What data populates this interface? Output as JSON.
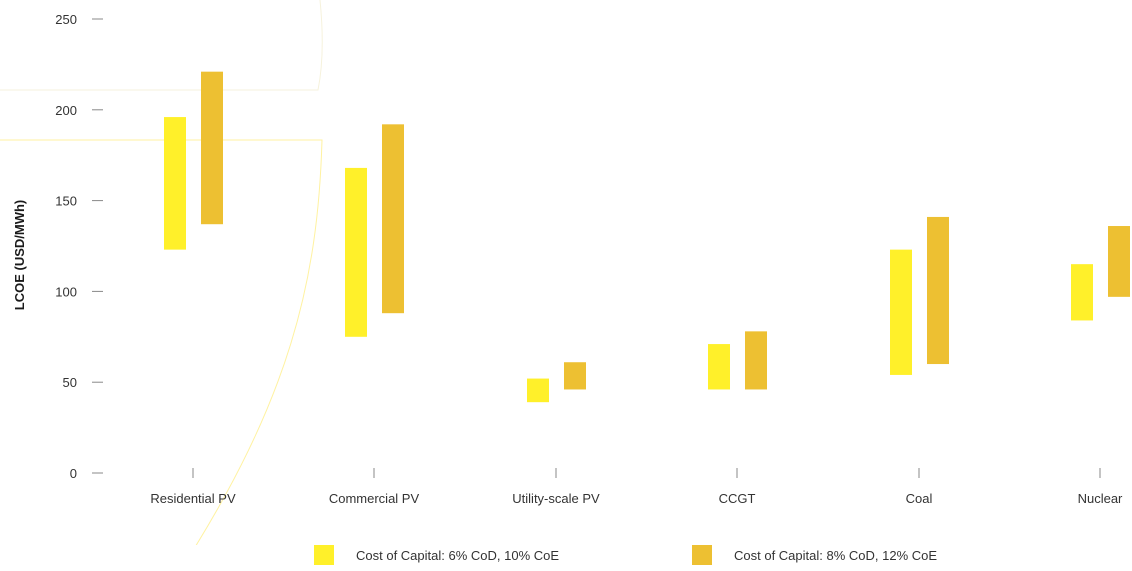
{
  "chart_data": {
    "type": "bar",
    "subtype": "floating-range",
    "ylabel": "LCOE (USD/MWh)",
    "ylim": [
      0,
      250
    ],
    "yticks": [
      0,
      50,
      100,
      150,
      200,
      250
    ],
    "grid": false,
    "legend_position": "bottom",
    "categories": [
      "Residential PV",
      "Commercial PV",
      "Utility-scale PV",
      "CCGT",
      "Coal",
      "Nuclear"
    ],
    "series": [
      {
        "name": "Cost of Capital: 6% CoD, 10% CoE",
        "color": "#FFF02A",
        "ranges": [
          [
            123,
            196
          ],
          [
            75,
            168
          ],
          [
            39,
            52
          ],
          [
            46,
            71
          ],
          [
            54,
            123
          ],
          [
            84,
            115
          ]
        ]
      },
      {
        "name": "Cost of Capital: 8% CoD, 12% CoE",
        "color": "#EDC032",
        "ranges": [
          [
            137,
            221
          ],
          [
            88,
            192
          ],
          [
            46,
            61
          ],
          [
            46,
            78
          ],
          [
            60,
            141
          ],
          [
            97,
            136
          ]
        ]
      }
    ]
  }
}
